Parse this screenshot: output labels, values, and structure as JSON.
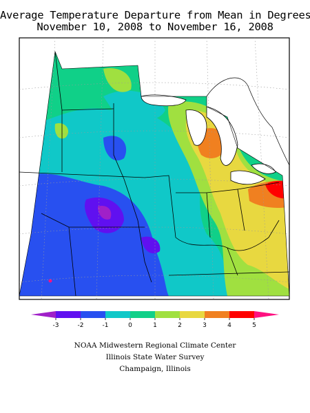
{
  "title": {
    "line1": "Average Temperature Departure from Mean in Degrees F",
    "line2": "November 10, 2008 to November 16, 2008"
  },
  "legend": {
    "ticks": [
      "-3",
      "-2",
      "-1",
      "0",
      "1",
      "2",
      "3",
      "4",
      "5"
    ],
    "colors": [
      "#a020c8",
      "#6010f0",
      "#2850f0",
      "#10c8c8",
      "#10d088",
      "#a0e040",
      "#e8d840",
      "#f08020",
      "#ff0000",
      "#ff1080"
    ]
  },
  "credits": {
    "line1": "NOAA Midwestern Regional Climate Center",
    "line2": "Illinois State Water Survey",
    "line3": "Champaign, Illinois"
  }
}
